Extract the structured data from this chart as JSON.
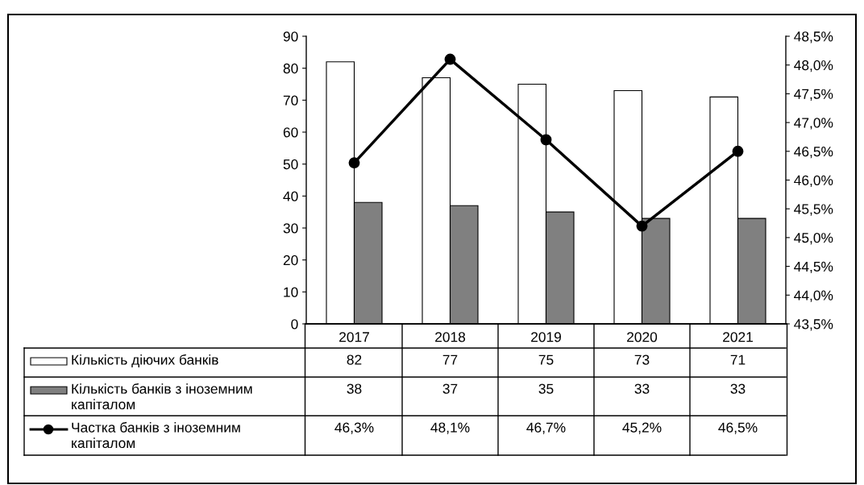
{
  "chart_data": {
    "type": "bar",
    "categories": [
      "2017",
      "2018",
      "2019",
      "2020",
      "2021"
    ],
    "series": [
      {
        "name": "Кількість діючих банків",
        "color": "#ffffff",
        "values": [
          82,
          77,
          75,
          73,
          71
        ],
        "value_labels": [
          "82",
          "77",
          "75",
          "73",
          "71"
        ]
      },
      {
        "name": "Кількість банків з іноземним капіталом",
        "color": "#808080",
        "values": [
          38,
          37,
          35,
          33,
          33
        ],
        "value_labels": [
          "38",
          "37",
          "35",
          "33",
          "33"
        ]
      },
      {
        "name": "Частка банків з іноземним капіталом",
        "type": "line",
        "axis": "y2",
        "color": "#000000",
        "marker": "circle",
        "values": [
          46.3,
          48.1,
          46.7,
          45.2,
          46.5
        ],
        "value_labels": [
          "46,3%",
          "48,1%",
          "46,7%",
          "45,2%",
          "46,5%"
        ]
      }
    ],
    "ylim": [
      0,
      90
    ],
    "yticks": [
      0,
      10,
      20,
      30,
      40,
      50,
      60,
      70,
      80,
      90
    ],
    "y2lim": [
      43.5,
      48.5
    ],
    "y2ticks": [
      {
        "value": 43.5,
        "label": "43,5%"
      },
      {
        "value": 44.0,
        "label": "44,0%"
      },
      {
        "value": 44.5,
        "label": "44,5%"
      },
      {
        "value": 45.0,
        "label": "45,0%"
      },
      {
        "value": 45.5,
        "label": "45,5%"
      },
      {
        "value": 46.0,
        "label": "46,0%"
      },
      {
        "value": 46.5,
        "label": "46,5%"
      },
      {
        "value": 47.0,
        "label": "47,0%"
      },
      {
        "value": 47.5,
        "label": "47,5%"
      },
      {
        "value": 48.0,
        "label": "48,0%"
      },
      {
        "value": 48.5,
        "label": "48,5%"
      }
    ],
    "grid": false,
    "legend": "bottom left"
  }
}
